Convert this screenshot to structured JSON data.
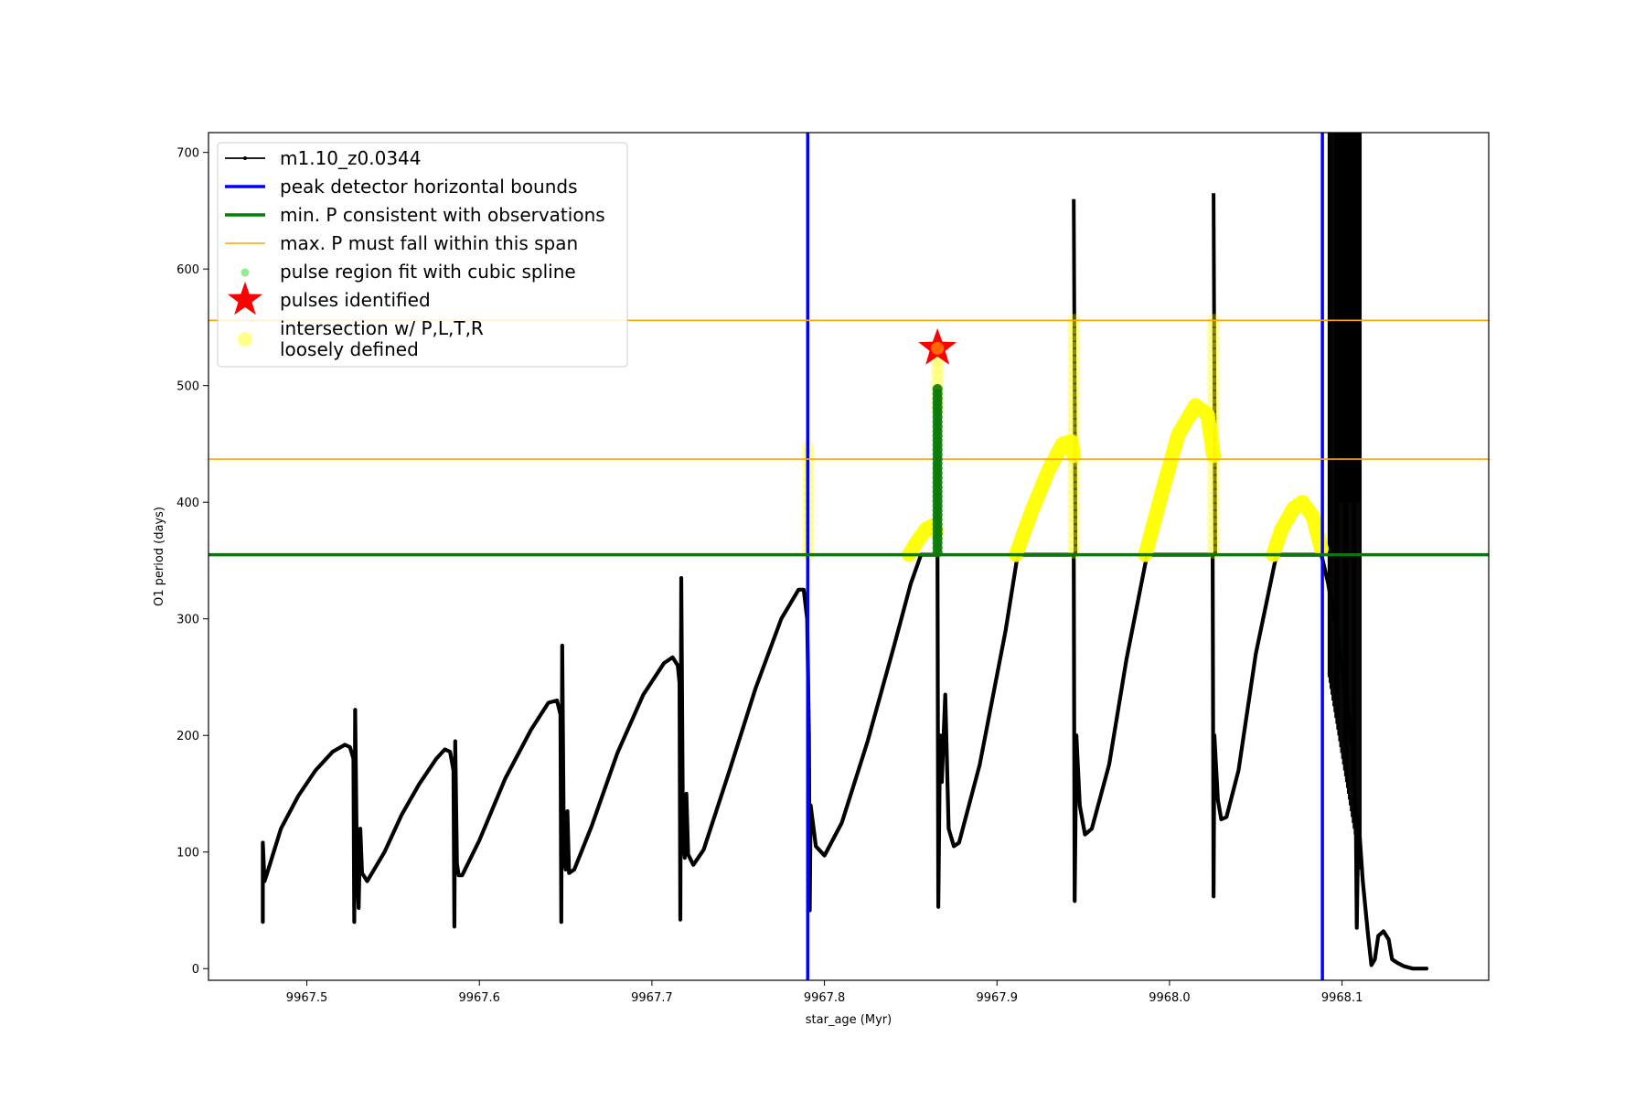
{
  "chart_data": {
    "type": "line",
    "xlabel": "star_age (Myr)",
    "ylabel": "O1 period (days)",
    "xlim": [
      9967.443,
      9968.185
    ],
    "ylim": [
      -10,
      717
    ],
    "x_ticks": [
      9967.5,
      9967.6,
      9967.7,
      9967.8,
      9967.9,
      9968.0,
      9968.1
    ],
    "x_tick_labels": [
      "9967.5",
      "9967.6",
      "9967.7",
      "9967.8",
      "9967.9",
      "9968.0",
      "9968.1"
    ],
    "y_ticks": [
      0,
      100,
      200,
      300,
      400,
      500,
      600,
      700
    ],
    "y_tick_labels": [
      "0",
      "100",
      "200",
      "300",
      "400",
      "500",
      "600",
      "700"
    ],
    "grid": false,
    "legend_placement": "top-left",
    "colors": {
      "main": "#000000",
      "bounds": "#0000ff",
      "min_p": "#008000",
      "max_p": "#ffa500",
      "spline": "#90ee90",
      "pulse": "#ff0000",
      "loose": "#ffff00"
    },
    "legend": [
      {
        "key": "main",
        "label": "m1.10_z0.0344"
      },
      {
        "key": "bounds",
        "label": "peak detector horizontal bounds"
      },
      {
        "key": "min_p",
        "label": "min. P consistent with observations"
      },
      {
        "key": "max_p",
        "label": "max. P must fall within this span"
      },
      {
        "key": "spline",
        "label": "pulse region fit with cubic spline"
      },
      {
        "key": "pulse",
        "label": "pulses identified"
      },
      {
        "key": "loose",
        "label": "intersection w/ P,L,T,R\nloosely defined"
      }
    ],
    "series": [
      {
        "name": "m1.10_z0.0344",
        "points": [
          [
            9967.4745,
            40
          ],
          [
            9967.4745,
            108
          ],
          [
            9967.475,
            90
          ],
          [
            9967.4755,
            75
          ],
          [
            9967.477,
            82
          ],
          [
            9967.485,
            120
          ],
          [
            9967.495,
            148
          ],
          [
            9967.505,
            170
          ],
          [
            9967.515,
            186
          ],
          [
            9967.522,
            192
          ],
          [
            9967.525,
            190
          ],
          [
            9967.527,
            180
          ],
          [
            9967.5275,
            40
          ],
          [
            9967.528,
            222
          ],
          [
            9967.529,
            90
          ],
          [
            9967.53,
            52
          ],
          [
            9967.531,
            120
          ],
          [
            9967.532,
            82
          ],
          [
            9967.535,
            75
          ],
          [
            9967.545,
            100
          ],
          [
            9967.555,
            132
          ],
          [
            9967.565,
            158
          ],
          [
            9967.575,
            180
          ],
          [
            9967.58,
            188
          ],
          [
            9967.583,
            186
          ],
          [
            9967.585,
            170
          ],
          [
            9967.5855,
            36
          ],
          [
            9967.586,
            195
          ],
          [
            9967.587,
            90
          ],
          [
            9967.588,
            80
          ],
          [
            9967.59,
            80
          ],
          [
            9967.6,
            110
          ],
          [
            9967.615,
            163
          ],
          [
            9967.63,
            205
          ],
          [
            9967.64,
            228
          ],
          [
            9967.645,
            230
          ],
          [
            9967.647,
            218
          ],
          [
            9967.6475,
            40
          ],
          [
            9967.648,
            277
          ],
          [
            9967.649,
            95
          ],
          [
            9967.65,
            85
          ],
          [
            9967.651,
            135
          ],
          [
            9967.652,
            82
          ],
          [
            9967.655,
            85
          ],
          [
            9967.665,
            122
          ],
          [
            9967.68,
            185
          ],
          [
            9967.695,
            235
          ],
          [
            9967.707,
            262
          ],
          [
            9967.712,
            267
          ],
          [
            9967.715,
            260
          ],
          [
            9967.716,
            245
          ],
          [
            9967.7165,
            42
          ],
          [
            9967.717,
            335
          ],
          [
            9967.718,
            110
          ],
          [
            9967.719,
            95
          ],
          [
            9967.72,
            150
          ],
          [
            9967.721,
            98
          ],
          [
            9967.724,
            89
          ],
          [
            9967.73,
            102
          ],
          [
            9967.745,
            170
          ],
          [
            9967.76,
            240
          ],
          [
            9967.775,
            300
          ],
          [
            9967.785,
            325
          ],
          [
            9967.788,
            325
          ],
          [
            9967.79,
            300
          ],
          [
            9967.791,
            200
          ],
          [
            9967.7915,
            50
          ],
          [
            9967.792,
            140
          ],
          [
            9967.795,
            105
          ],
          [
            9967.8,
            97
          ],
          [
            9967.81,
            125
          ],
          [
            9967.825,
            195
          ],
          [
            9967.84,
            275
          ],
          [
            9967.85,
            330
          ],
          [
            9967.856,
            355
          ],
          [
            9967.8655,
            355
          ],
          [
            9967.866,
            53
          ],
          [
            9967.867,
            200
          ],
          [
            9967.868,
            160
          ],
          [
            9967.87,
            235
          ],
          [
            9967.872,
            120
          ],
          [
            9967.875,
            105
          ],
          [
            9967.878,
            108
          ],
          [
            9967.89,
            175
          ],
          [
            9967.905,
            290
          ],
          [
            9967.912,
            355
          ],
          [
            9967.9445,
            355
          ],
          [
            9967.945,
            58
          ],
          [
            9967.946,
            200
          ],
          [
            9967.948,
            140
          ],
          [
            9967.951,
            115
          ],
          [
            9967.955,
            120
          ],
          [
            9967.965,
            175
          ],
          [
            9967.975,
            265
          ],
          [
            9967.987,
            355
          ],
          [
            9968.025,
            355
          ],
          [
            9968.0255,
            62
          ],
          [
            9968.026,
            200
          ],
          [
            9968.028,
            145
          ],
          [
            9968.03,
            128
          ],
          [
            9968.033,
            130
          ],
          [
            9968.04,
            170
          ],
          [
            9968.05,
            270
          ],
          [
            9968.062,
            355
          ],
          [
            9968.088,
            355
          ],
          [
            9968.092,
            330
          ],
          [
            9968.1,
            260
          ],
          [
            9968.106,
            190
          ],
          [
            9968.108,
            130
          ],
          [
            9968.1085,
            35
          ],
          [
            9968.1095,
            130
          ],
          [
            9968.112,
            75
          ],
          [
            9968.115,
            30
          ],
          [
            9968.117,
            3
          ],
          [
            9968.119,
            8
          ],
          [
            9968.121,
            28
          ],
          [
            9968.124,
            32
          ],
          [
            9968.127,
            25
          ],
          [
            9968.129,
            8
          ],
          [
            9968.132,
            5
          ],
          [
            9968.136,
            2
          ],
          [
            9968.141,
            0
          ],
          [
            9968.149,
            0
          ]
        ]
      },
      {
        "name": "spikes",
        "points": [
          [
            9967.9445,
            660
          ],
          [
            9967.9455,
            355
          ],
          [
            9968.0255,
            665
          ],
          [
            9968.0265,
            355
          ]
        ]
      },
      {
        "name": "oscillation_band",
        "x_from": 9968.092,
        "x_to": 9968.111,
        "y_to": 717
      },
      {
        "name": "peak detector horizontal bounds",
        "x_values": [
          9967.7903,
          9968.0886
        ]
      },
      {
        "name": "min. P consistent with observations",
        "y_values": [
          355
        ]
      },
      {
        "name": "max. P must fall within this span",
        "y_values": [
          437,
          556
        ]
      },
      {
        "name": "pulse region fit with cubic spline",
        "points": [
          [
            9967.8655,
            357
          ],
          [
            9967.8655,
            380
          ],
          [
            9967.8655,
            400
          ],
          [
            9967.8655,
            420
          ],
          [
            9967.8655,
            440
          ],
          [
            9967.8655,
            460
          ],
          [
            9967.8655,
            480
          ],
          [
            9967.8655,
            497
          ]
        ]
      },
      {
        "name": "pulses identified",
        "points": [
          [
            9967.8655,
            532
          ]
        ]
      },
      {
        "name": "intersection w/ P,L,T,R loosely defined",
        "arcs": [
          {
            "points": [
              [
                9967.849,
                355
              ],
              [
                9967.854,
                367
              ],
              [
                9967.859,
                377
              ],
              [
                9967.863,
                380
              ],
              [
                9967.865,
                375
              ]
            ]
          },
          {
            "points": [
              [
                9967.911,
                355
              ],
              [
                9967.92,
                392
              ],
              [
                9967.93,
                428
              ],
              [
                9967.938,
                450
              ],
              [
                9967.943,
                452
              ],
              [
                9967.9445,
                440
              ]
            ]
          },
          {
            "points": [
              [
                9967.986,
                355
              ],
              [
                9967.995,
                405
              ],
              [
                9968.005,
                458
              ],
              [
                9968.015,
                483
              ],
              [
                9968.022,
                475
              ],
              [
                9968.0255,
                440
              ]
            ]
          },
          {
            "points": [
              [
                9968.06,
                355
              ],
              [
                9968.065,
                377
              ],
              [
                9968.072,
                395
              ],
              [
                9968.077,
                400
              ],
              [
                9968.083,
                388
              ],
              [
                9968.088,
                360
              ]
            ]
          }
        ],
        "columns": [
          {
            "x": 9967.7905,
            "y_from": 355,
            "y_to": 447
          },
          {
            "x": 9967.8655,
            "y_from": 480,
            "y_to": 532
          },
          {
            "x": 9967.9445,
            "y_from": 357,
            "y_to": 556
          },
          {
            "x": 9968.0255,
            "y_from": 357,
            "y_to": 556
          }
        ]
      }
    ]
  }
}
